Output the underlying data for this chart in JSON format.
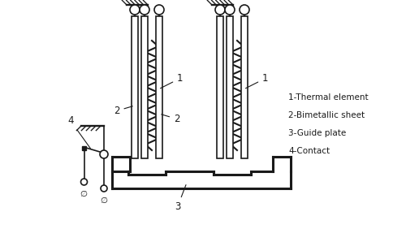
{
  "bg_color": "#ffffff",
  "line_color": "#1a1a1a",
  "lw": 1.2,
  "lw_thick": 2.2,
  "legend_items": [
    "1-Thermal element",
    "2-Bimetallic sheet",
    "3-Guide plate",
    "4-Contact"
  ]
}
